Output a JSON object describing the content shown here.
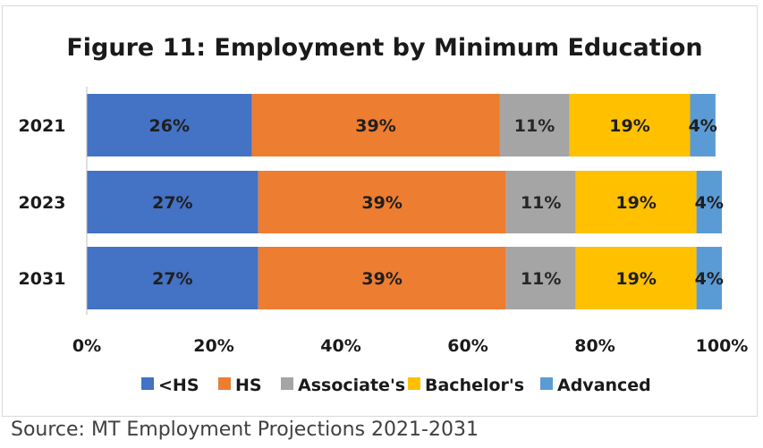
{
  "chart_data": {
    "type": "bar",
    "orientation": "horizontal",
    "stacked": true,
    "title": "Figure 11: Employment by Minimum Education",
    "categories": [
      "2021",
      "2023",
      "2031"
    ],
    "series": [
      {
        "name": "<HS",
        "color": "#4472c4",
        "values": [
          26,
          27,
          27
        ],
        "labels": [
          "26%",
          "27%",
          "27%"
        ]
      },
      {
        "name": "HS",
        "color": "#ed7d31",
        "values": [
          39,
          39,
          39
        ],
        "labels": [
          "39%",
          "39%",
          "39%"
        ]
      },
      {
        "name": "Associate's",
        "color": "#a5a5a5",
        "values": [
          11,
          11,
          11
        ],
        "labels": [
          "11%",
          "11%",
          "11%"
        ]
      },
      {
        "name": "Bachelor's",
        "color": "#ffc000",
        "values": [
          19,
          19,
          19
        ],
        "labels": [
          "19%",
          "19%",
          "19%"
        ]
      },
      {
        "name": "Advanced",
        "color": "#5b9bd5",
        "values": [
          4,
          4,
          4
        ],
        "labels": [
          "4%",
          "4%",
          "4%"
        ]
      }
    ],
    "xlim": [
      0,
      100
    ],
    "xticks": [
      "0%",
      "20%",
      "40%",
      "60%",
      "80%",
      "100%"
    ],
    "legend_position": "bottom",
    "grid": false
  },
  "source": "Source: MT Employment Projections 2021-2031"
}
